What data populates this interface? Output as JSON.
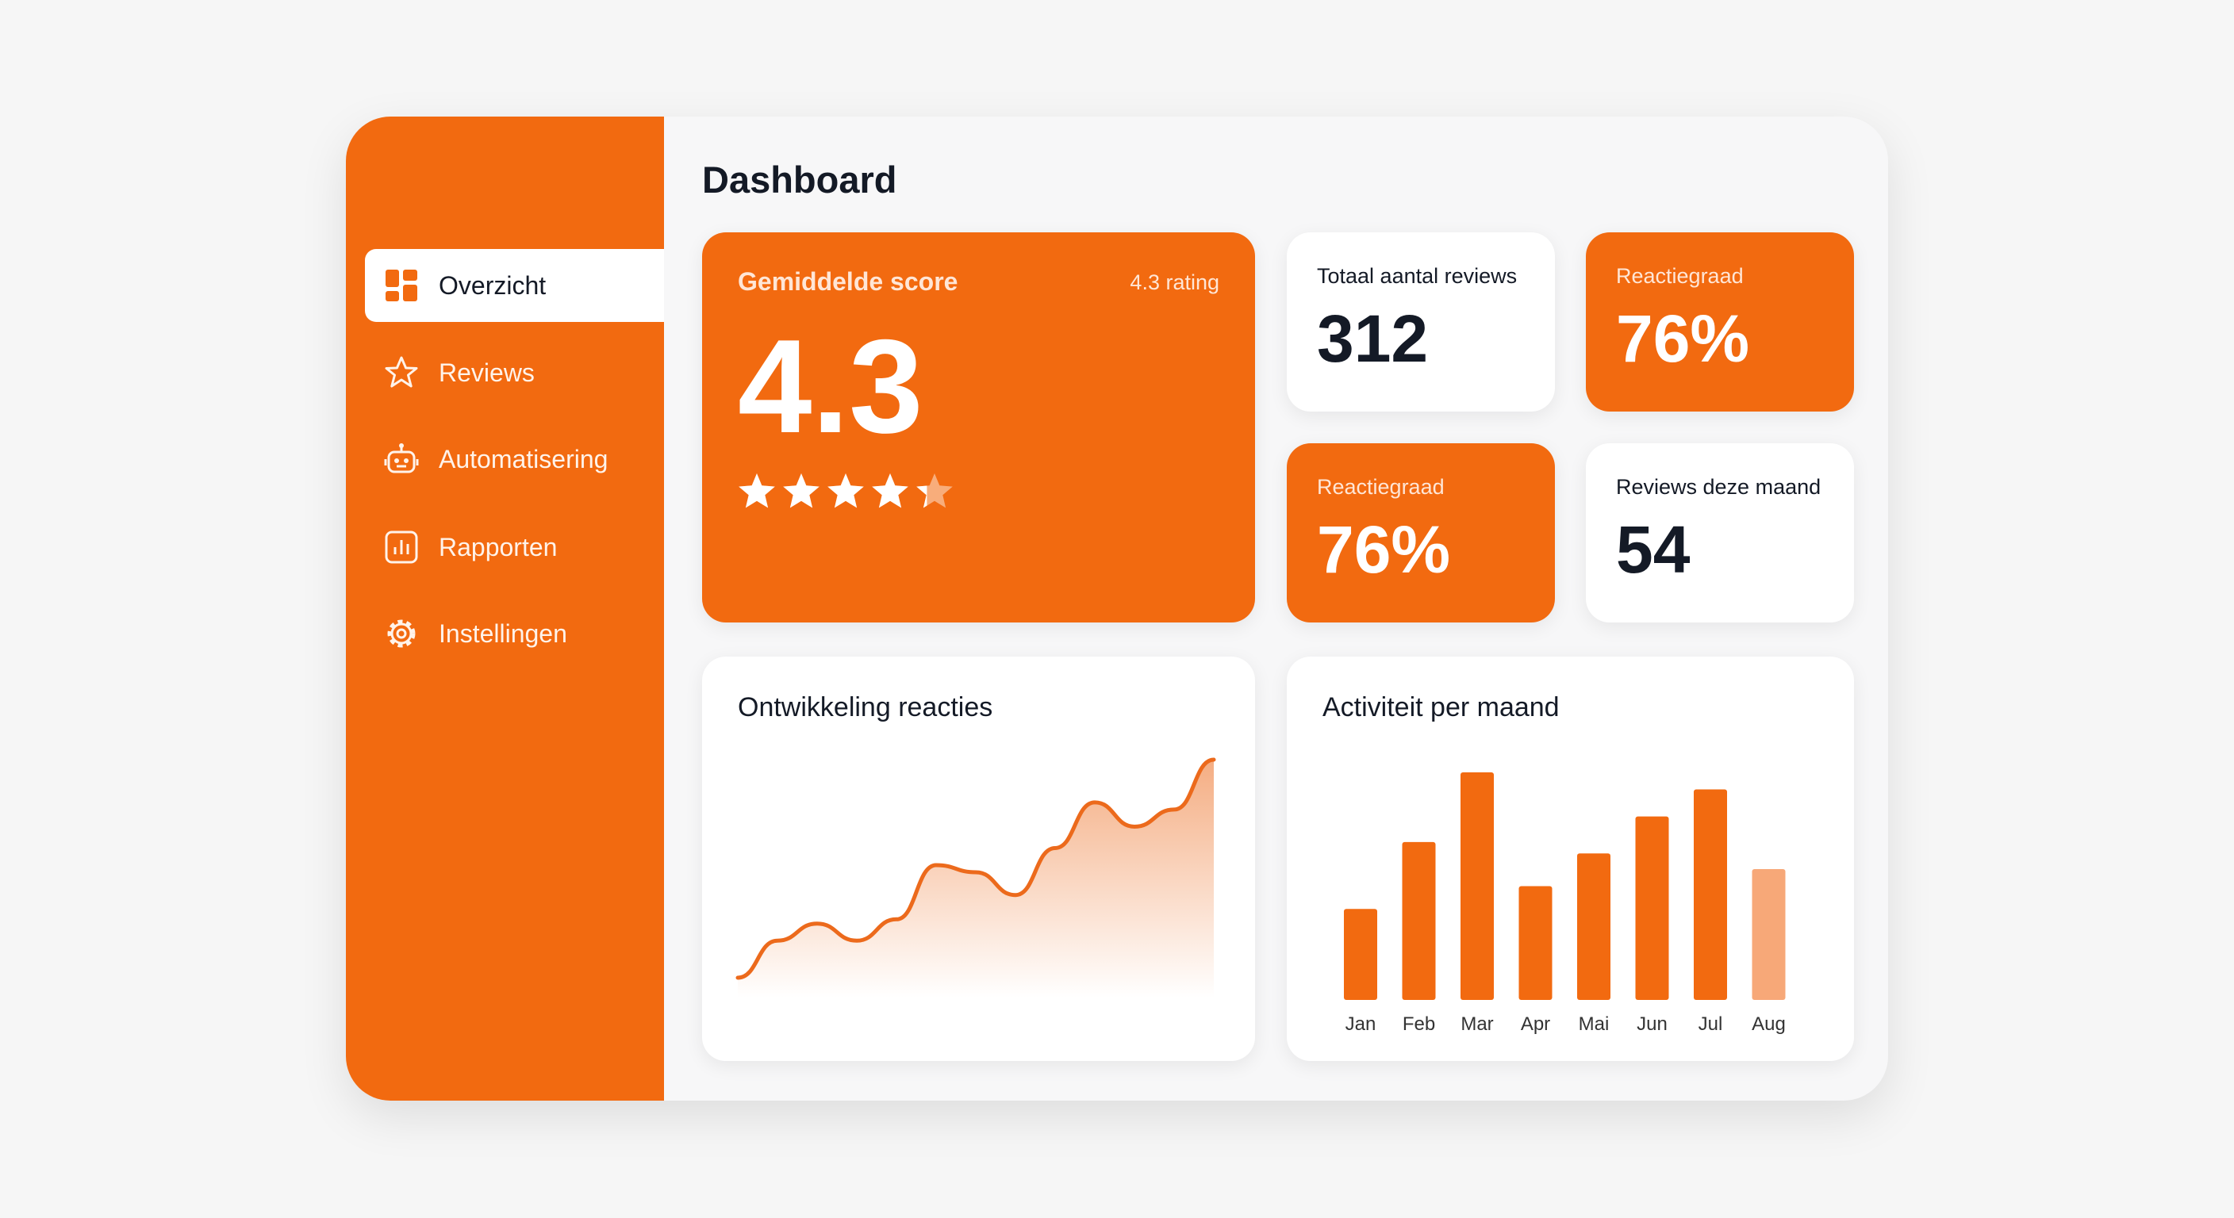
{
  "header": {
    "title": "Dashboard"
  },
  "sidebar": {
    "nav": [
      "Overzicht",
      "Reviews",
      "Automatisering",
      "Rapporten",
      "Instellingen"
    ]
  },
  "score_card": {
    "title": "Gemiddelde score",
    "badge": "4.3 rating",
    "score": 4.3,
    "color": "#f26a10"
  },
  "stats": [
    {
      "label": "Totaal aantal reviews",
      "value": 312,
      "color": "#ffffff"
    },
    {
      "label": "Reactiegraad",
      "value": "76%",
      "color": "#f26a10"
    },
    {
      "label": "Reactiegraad",
      "value": "76%",
      "color": "#f26a10"
    },
    {
      "label": "Reviews deze maand",
      "value": 54,
      "color": "#ffffff"
    }
  ],
  "chart_data": [
    {
      "type": "line",
      "title": "Ontwikkeling reacties",
      "color": "#ec6a1c",
      "values": [
        0,
        26,
        38,
        26,
        41,
        79,
        74,
        58,
        91,
        123,
        106,
        118,
        153
      ]
    },
    {
      "type": "bar",
      "title": "Activiteit per maand",
      "categories": [
        "Jan",
        "Feb",
        "Mar",
        "Apr",
        "Mai",
        "Jun",
        "Jul",
        "Aug"
      ],
      "values": [
        64,
        111,
        160,
        80,
        103,
        129,
        148,
        92
      ],
      "colors": [
        "#f26a10",
        "#f26a10",
        "#f26a10",
        "#f26a10",
        "#f26a10",
        "#f26a10",
        "#f26a10",
        "#f7a878"
      ]
    }
  ]
}
